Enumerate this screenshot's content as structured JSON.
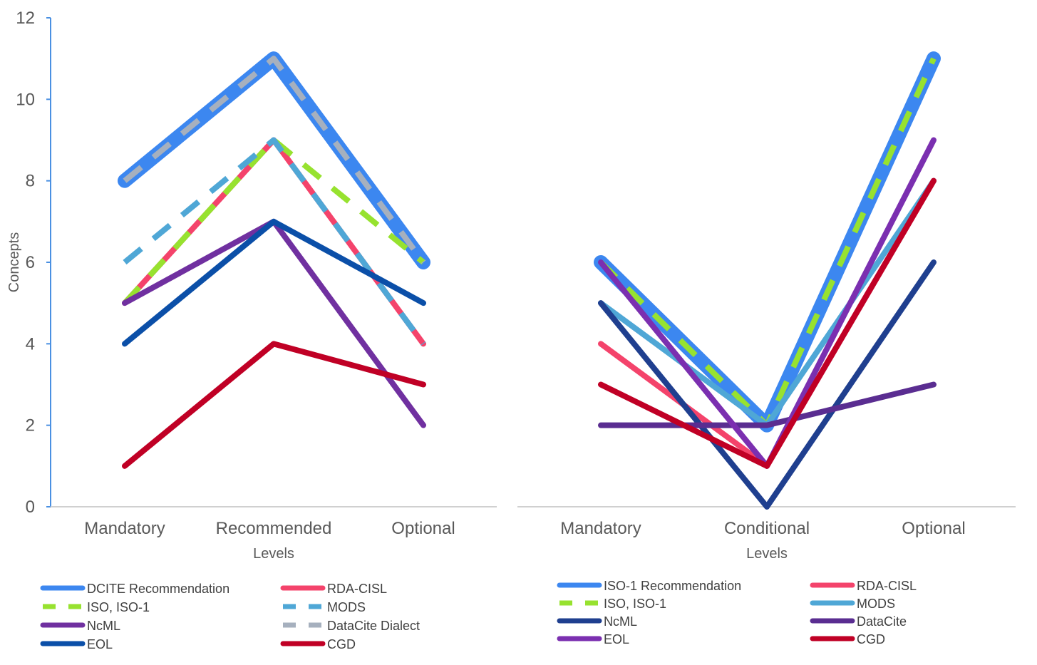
{
  "chart_data": [
    {
      "type": "line",
      "xlabel": "Levels",
      "ylabel": "Concepts",
      "ylim": [
        0,
        12
      ],
      "yticks": [
        0,
        2,
        4,
        6,
        8,
        10,
        12
      ],
      "categories": [
        "Mandatory",
        "Recommended",
        "Optional"
      ],
      "grid": false,
      "legend": "bottom",
      "series": [
        {
          "name": "DCITE Recommendation",
          "values": [
            8,
            11,
            6
          ],
          "color": "#3C87F0",
          "style": "solid-thick"
        },
        {
          "name": "RDA-CISL",
          "values": [
            5,
            9,
            4
          ],
          "color": "#F4436B",
          "style": "solid"
        },
        {
          "name": "ISO, ISO-1",
          "values": [
            5,
            9,
            6
          ],
          "color": "#97E22F",
          "style": "dashed"
        },
        {
          "name": "MODS",
          "values": [
            6,
            9,
            4
          ],
          "color": "#4FA7D6",
          "style": "dashed"
        },
        {
          "name": "NcML",
          "values": [
            5,
            7,
            2
          ],
          "color": "#7030A0",
          "style": "solid"
        },
        {
          "name": "DataCite Dialect",
          "values": [
            8,
            11,
            6
          ],
          "color": "#A6B0BE",
          "style": "dashed"
        },
        {
          "name": "EOL",
          "values": [
            4,
            7,
            5
          ],
          "color": "#0B4FA8",
          "style": "solid"
        },
        {
          "name": "CGD",
          "values": [
            1,
            4,
            3
          ],
          "color": "#C00025",
          "style": "solid"
        }
      ]
    },
    {
      "type": "line",
      "xlabel": "Levels",
      "ylabel": "",
      "ylim": [
        0,
        12
      ],
      "categories": [
        "Mandatory",
        "Conditional",
        "Optional"
      ],
      "grid": false,
      "legend": "bottom",
      "series": [
        {
          "name": "ISO-1 Recommendation",
          "values": [
            6,
            2,
            11
          ],
          "color": "#3C87F0",
          "style": "solid-thick"
        },
        {
          "name": "RDA-CISL",
          "values": [
            4,
            1,
            8
          ],
          "color": "#F4436B",
          "style": "solid"
        },
        {
          "name": "ISO, ISO-1",
          "values": [
            6,
            2,
            11
          ],
          "color": "#97E22F",
          "style": "dashed"
        },
        {
          "name": "MODS",
          "values": [
            5,
            2,
            8
          ],
          "color": "#4FA7D6",
          "style": "solid"
        },
        {
          "name": "NcML",
          "values": [
            5,
            0,
            6
          ],
          "color": "#1F3F8F",
          "style": "solid"
        },
        {
          "name": "DataCite",
          "values": [
            2,
            2,
            3
          ],
          "color": "#5A2D91",
          "style": "solid"
        },
        {
          "name": "EOL",
          "values": [
            6,
            1,
            9
          ],
          "color": "#7B2FB0",
          "style": "solid"
        },
        {
          "name": "CGD",
          "values": [
            3,
            1,
            8
          ],
          "color": "#C00025",
          "style": "solid"
        }
      ]
    }
  ]
}
